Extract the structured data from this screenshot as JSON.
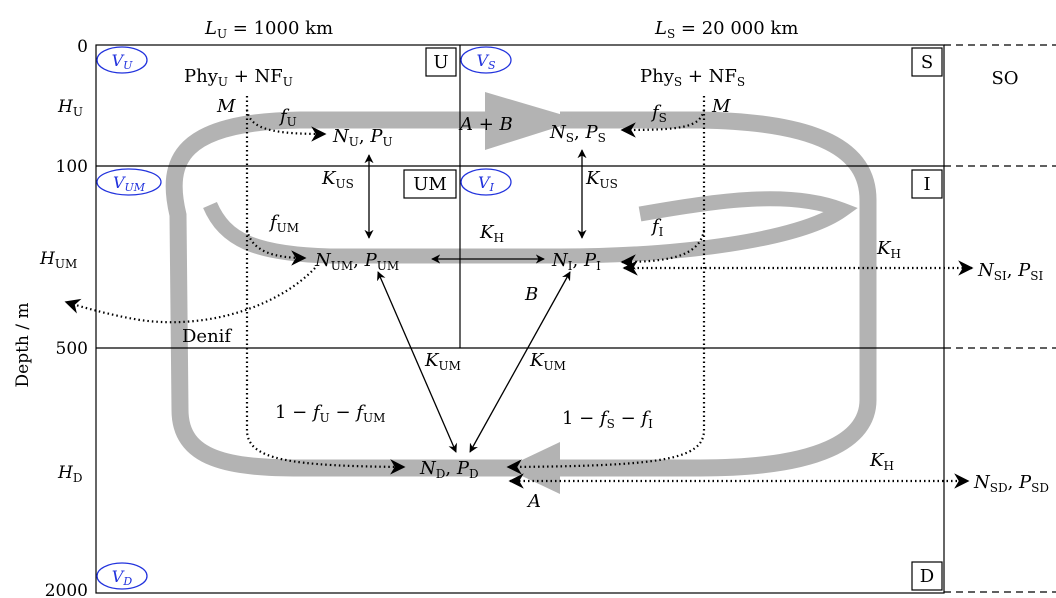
{
  "header": {
    "lu_label": "L",
    "lu_sub": "U",
    "lu_value": " = 1000 km",
    "ls_label": "L",
    "ls_sub": "S",
    "ls_value": " = 20 000 km"
  },
  "depth_axis": {
    "title": "Depth / m",
    "ticks": [
      "0",
      "100",
      "500",
      "2000"
    ],
    "h_labels": [
      {
        "main": "H",
        "sub": "U"
      },
      {
        "main": "H",
        "sub": "UM"
      },
      {
        "main": "H",
        "sub": "D"
      }
    ]
  },
  "boxes": {
    "U": "U",
    "S": "S",
    "UM": "UM",
    "I": "I",
    "D": "D",
    "SO": "SO"
  },
  "volumes": {
    "vu": {
      "main": "V",
      "sub": "U"
    },
    "vs": {
      "main": "V",
      "sub": "S"
    },
    "vum": {
      "main": "V",
      "sub": "UM"
    },
    "vi": {
      "main": "V",
      "sub": "I"
    },
    "vd": {
      "main": "V",
      "sub": "D"
    }
  },
  "labels": {
    "phy_u": {
      "a": "Phy",
      "a_sub": "U",
      "b": " + NF",
      "b_sub": "U"
    },
    "phy_s": {
      "a": "Phy",
      "a_sub": "S",
      "b": " + NF",
      "b_sub": "S"
    },
    "m_left": "M",
    "m_right": "M",
    "f_u": {
      "main": "f",
      "sub": "U"
    },
    "f_s": {
      "main": "f",
      "sub": "S"
    },
    "f_um": {
      "main": "f",
      "sub": "UM"
    },
    "f_i": {
      "main": "f",
      "sub": "I"
    },
    "n_u": {
      "n": "N",
      "n_sub": "U",
      "p": "P",
      "p_sub": "U"
    },
    "n_s": {
      "n": "N",
      "n_sub": "S",
      "p": "P",
      "p_sub": "S"
    },
    "n_um": {
      "n": "N",
      "n_sub": "UM",
      "p": "P",
      "p_sub": "UM"
    },
    "n_i": {
      "n": "N",
      "n_sub": "I",
      "p": "P",
      "p_sub": "I"
    },
    "n_d": {
      "n": "N",
      "n_sub": "D",
      "p": "P",
      "p_sub": "D"
    },
    "n_si": {
      "n": "N",
      "n_sub": "SI",
      "p": "P",
      "p_sub": "SI"
    },
    "n_sd": {
      "n": "N",
      "n_sub": "SD",
      "p": "P",
      "p_sub": "SD"
    },
    "a_plus_b": "A + B",
    "b": "B",
    "a": "A",
    "k_us_left": {
      "main": "K",
      "sub": "US"
    },
    "k_us_right": {
      "main": "K",
      "sub": "US"
    },
    "k_h_mid": {
      "main": "K",
      "sub": "H"
    },
    "k_h_si": {
      "main": "K",
      "sub": "H"
    },
    "k_h_sd": {
      "main": "K",
      "sub": "H"
    },
    "k_um_left": {
      "main": "K",
      "sub": "UM"
    },
    "k_um_right": {
      "main": "K",
      "sub": "UM"
    },
    "denif": "Denif",
    "deep_left": {
      "a": "1 − ",
      "f1": "f",
      "f1_sub": "U",
      "mid": " − ",
      "f2": "f",
      "f2_sub": "UM"
    },
    "deep_right": {
      "a": "1 − ",
      "f1": "f",
      "f1_sub": "S",
      "mid": " − ",
      "f2": "f",
      "f2_sub": "I"
    }
  },
  "colors": {
    "flow": "#b3b3b3",
    "volume_ellipse": "#2233dd",
    "line": "#000000"
  }
}
